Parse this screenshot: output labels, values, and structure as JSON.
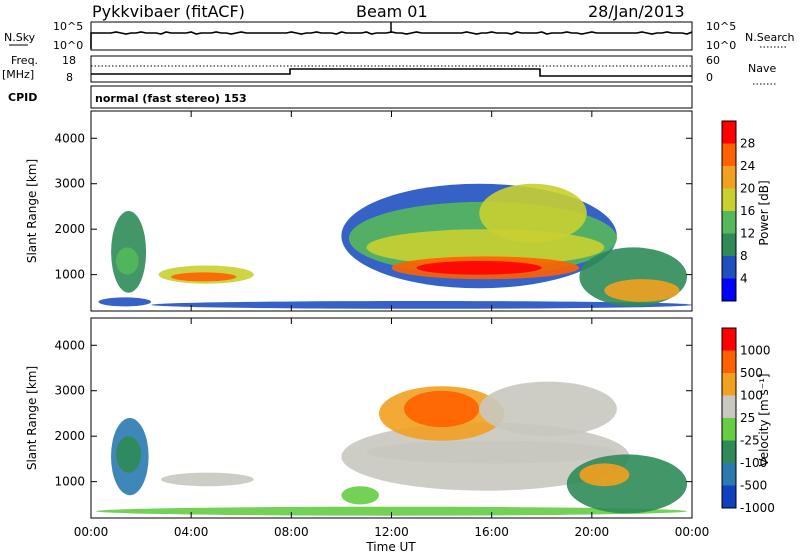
{
  "header": {
    "station": "Pykkvibaer (fitACF)",
    "beam": "Beam 01",
    "date": "28/Jan/2013"
  },
  "strip_labels": {
    "nsky": "N.Sky",
    "nsearch": "N.Search",
    "freq_top": "Freq.",
    "freq_unit": "[MHz]",
    "nave": "Nave",
    "cpid": "CPID",
    "cpid_text": "normal (fast stereo) 153",
    "nsky_ticks": [
      "10^5",
      "10^0"
    ],
    "nsearch_ticks": [
      "10^5",
      "10^0"
    ],
    "freq_ticks": [
      "18",
      "8"
    ],
    "nave_ticks": [
      "60",
      "0"
    ]
  },
  "chart_data": [
    {
      "type": "heatmap",
      "title": "",
      "ylabel": "Slant Range [km]",
      "ylim": [
        200,
        4600
      ],
      "yticks": [
        "4000",
        "3000",
        "2000",
        "1000"
      ],
      "colorbar_label": "Power [dB]",
      "colorbar_ticks": [
        "28",
        "24",
        "20",
        "16",
        "12",
        "8",
        "4"
      ],
      "colorbar_colors": [
        "#0000ff",
        "#2050c0",
        "#2e8b57",
        "#55b85a",
        "#c8d030",
        "#f2a020",
        "#ff6000",
        "#ff0000"
      ],
      "grid": false
    },
    {
      "type": "heatmap",
      "title": "",
      "ylabel": "Slant Range [km]",
      "xlabel": "Time UT",
      "ylim": [
        200,
        4600
      ],
      "xlim_hours": [
        0,
        24
      ],
      "yticks": [
        "4000",
        "3000",
        "2000",
        "1000"
      ],
      "xticks": [
        "00:00",
        "04:00",
        "08:00",
        "12:00",
        "16:00",
        "20:00",
        "00:00"
      ],
      "colorbar_label": "Velocity [m s⁻¹]",
      "colorbar_ticks": [
        "1000",
        "500",
        "100",
        "25",
        "-25",
        "-100",
        "-500",
        "-1000"
      ],
      "colorbar_colors": [
        "#1040c0",
        "#2a7ab0",
        "#2e8b57",
        "#66cc44",
        "#c8c8c0",
        "#f2a020",
        "#ff6000",
        "#ff0000"
      ],
      "grid": false
    }
  ]
}
